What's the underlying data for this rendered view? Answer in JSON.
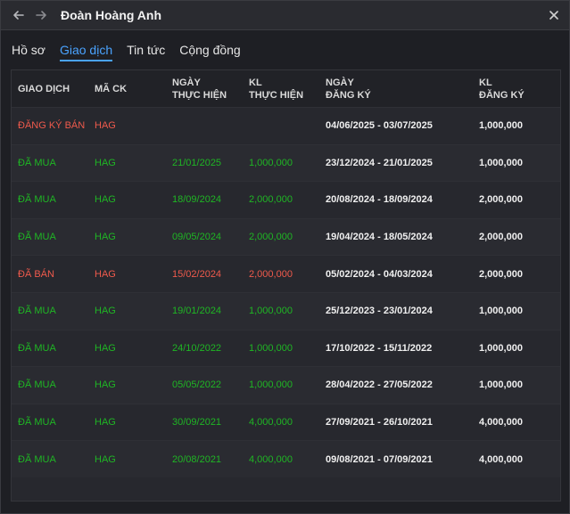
{
  "window": {
    "title": "Đoàn Hoàng Anh"
  },
  "icons": {
    "back": "arrow-left-icon",
    "forward": "arrow-right-icon",
    "close": "close-icon"
  },
  "tabs": [
    {
      "label": "Hồ sơ",
      "active": false
    },
    {
      "label": "Giao dịch",
      "active": true
    },
    {
      "label": "Tin tức",
      "active": false
    },
    {
      "label": "Cộng đồng",
      "active": false
    }
  ],
  "table": {
    "headers": {
      "type": "GIAO DỊCH",
      "code": "MÃ CK",
      "date_line1": "NGÀY",
      "date_line2": "THỰC HIỆN",
      "qty_line1": "KL",
      "qty_line2": "THỰC HIỆN",
      "reg_date_line1": "NGÀY",
      "reg_date_line2": "ĐĂNG KÝ",
      "reg_qty_line1": "KL",
      "reg_qty_line2": "ĐĂNG KÝ"
    },
    "rows": [
      {
        "type": "ĐĂNG KÝ BÁN",
        "code": "HAG",
        "date": "",
        "qty": "",
        "reg_range": "04/06/2025 - 03/07/2025",
        "reg_qty": "1,000,000",
        "color": "red"
      },
      {
        "type": "ĐÃ MUA",
        "code": "HAG",
        "date": "21/01/2025",
        "qty": "1,000,000",
        "reg_range": "23/12/2024 - 21/01/2025",
        "reg_qty": "1,000,000",
        "color": "green"
      },
      {
        "type": "ĐÃ MUA",
        "code": "HAG",
        "date": "18/09/2024",
        "qty": "2,000,000",
        "reg_range": "20/08/2024 - 18/09/2024",
        "reg_qty": "2,000,000",
        "color": "green"
      },
      {
        "type": "ĐÃ MUA",
        "code": "HAG",
        "date": "09/05/2024",
        "qty": "2,000,000",
        "reg_range": "19/04/2024 - 18/05/2024",
        "reg_qty": "2,000,000",
        "color": "green"
      },
      {
        "type": "ĐÃ BÁN",
        "code": "HAG",
        "date": "15/02/2024",
        "qty": "2,000,000",
        "reg_range": "05/02/2024 - 04/03/2024",
        "reg_qty": "2,000,000",
        "color": "red"
      },
      {
        "type": "ĐÃ MUA",
        "code": "HAG",
        "date": "19/01/2024",
        "qty": "1,000,000",
        "reg_range": "25/12/2023 - 23/01/2024",
        "reg_qty": "1,000,000",
        "color": "green"
      },
      {
        "type": "ĐÃ MUA",
        "code": "HAG",
        "date": "24/10/2022",
        "qty": "1,000,000",
        "reg_range": "17/10/2022 - 15/11/2022",
        "reg_qty": "1,000,000",
        "color": "green"
      },
      {
        "type": "ĐÃ MUA",
        "code": "HAG",
        "date": "05/05/2022",
        "qty": "1,000,000",
        "reg_range": "28/04/2022 - 27/05/2022",
        "reg_qty": "1,000,000",
        "color": "green"
      },
      {
        "type": "ĐÃ MUA",
        "code": "HAG",
        "date": "30/09/2021",
        "qty": "4,000,000",
        "reg_range": "27/09/2021 - 26/10/2021",
        "reg_qty": "4,000,000",
        "color": "green"
      },
      {
        "type": "ĐÃ MUA",
        "code": "HAG",
        "date": "20/08/2021",
        "qty": "4,000,000",
        "reg_range": "09/08/2021 - 07/09/2021",
        "reg_qty": "4,000,000",
        "color": "green"
      }
    ]
  }
}
